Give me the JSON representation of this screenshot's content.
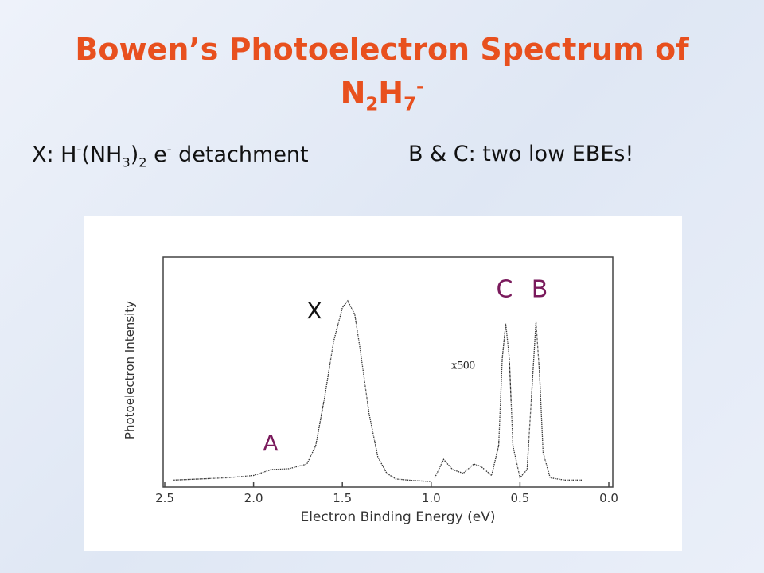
{
  "title": {
    "line1": "Bowen’s Photoelectron Spectrum of",
    "formula": [
      "N",
      "2",
      "H",
      "7",
      "-"
    ]
  },
  "subtitle": {
    "left": [
      "X: H",
      "-",
      "(NH",
      "3",
      ")",
      "2",
      " e",
      "-",
      " detachment"
    ],
    "right": "B & C: two low EBEs!"
  },
  "chart_data": {
    "type": "line",
    "xlabel": "Electron Binding Energy (eV)",
    "ylabel": "Photoelectron Intensity",
    "xlim": [
      2.5,
      0.0
    ],
    "ylim": [
      0,
      100
    ],
    "xticks": [
      {
        "value": 2.5,
        "label": "2.5"
      },
      {
        "value": 2.0,
        "label": "2.0"
      },
      {
        "value": 1.5,
        "label": "1.5"
      },
      {
        "value": 1.0,
        "label": "1.0"
      },
      {
        "value": 0.5,
        "label": "0.5"
      },
      {
        "value": 0.0,
        "label": "0.0"
      }
    ],
    "series": [
      {
        "color": "#333333",
        "x": [
          2.45,
          2.3,
          2.15,
          2.0,
          1.9,
          1.8,
          1.7,
          1.65,
          1.6,
          1.55,
          1.5,
          1.47,
          1.43,
          1.4,
          1.35,
          1.3,
          1.25,
          1.2,
          1.1,
          1.0
        ],
        "values": [
          3,
          3.5,
          4,
          5,
          7.6,
          8,
          10,
          18,
          39,
          63,
          78,
          81,
          75,
          60,
          32,
          13,
          6,
          3.5,
          2.8,
          2.4
        ]
      },
      {
        "color": "#333333",
        "x": [
          0.98,
          0.93,
          0.88,
          0.82,
          0.76,
          0.72,
          0.66,
          0.62,
          0.6,
          0.58,
          0.56,
          0.54,
          0.5,
          0.46,
          0.43,
          0.41,
          0.39,
          0.37,
          0.33,
          0.25,
          0.15
        ],
        "values": [
          4,
          12,
          7.6,
          6,
          10,
          9,
          5,
          18,
          56,
          71,
          56,
          18,
          4,
          7.6,
          46,
          72,
          49,
          15,
          4,
          3,
          3
        ]
      }
    ],
    "annotations": [
      "X",
      "A",
      "C",
      "B",
      "x500"
    ]
  }
}
